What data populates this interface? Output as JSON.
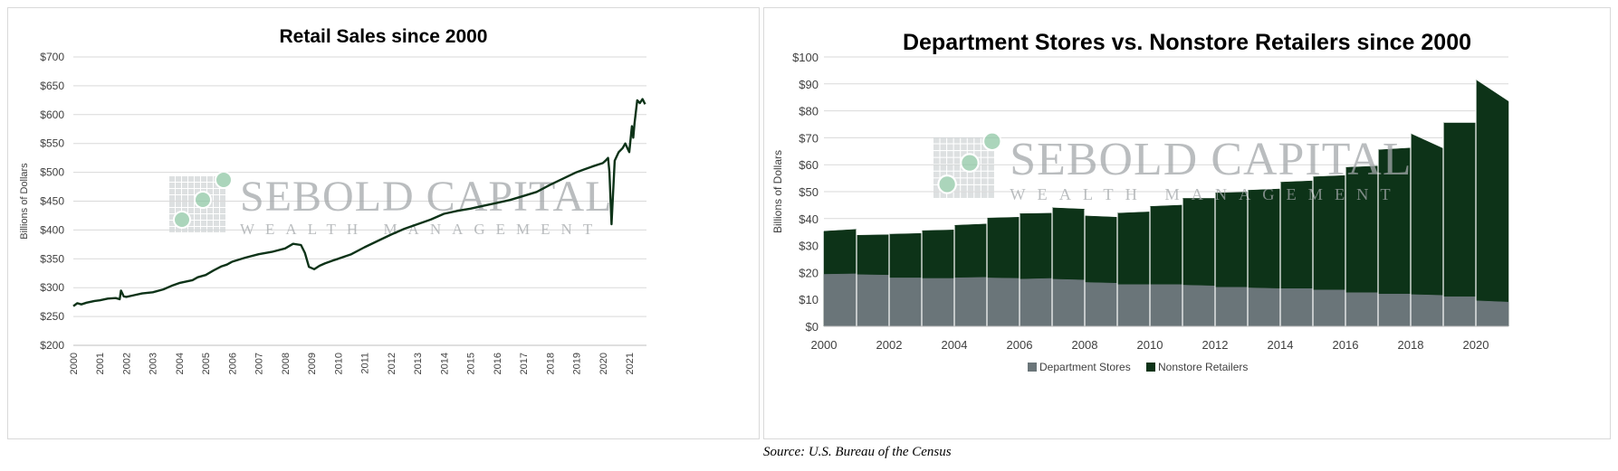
{
  "source_note": "Source: U.S. Bureau of the Census",
  "watermark": {
    "line1": "SEBOLD CAPITAL",
    "line2": "WEALTH MANAGEMENT"
  },
  "chart_data": [
    {
      "type": "line",
      "title": "Retail Sales since 2000",
      "xlabel": "",
      "ylabel": "Billions of Dollars",
      "ylim": [
        200,
        700
      ],
      "yticks": [
        200,
        250,
        300,
        350,
        400,
        450,
        500,
        550,
        600,
        650,
        700
      ],
      "ytick_labels": [
        "$200",
        "$250",
        "$300",
        "$350",
        "$400",
        "$450",
        "$500",
        "$550",
        "$600",
        "$650",
        "$700"
      ],
      "xlim": [
        2000,
        2021.65
      ],
      "xtick_labels": [
        "2000",
        "2001",
        "2002",
        "2003",
        "2004",
        "2005",
        "2006",
        "2007",
        "2008",
        "2009",
        "2010",
        "2011",
        "2012",
        "2013",
        "2014",
        "2015",
        "2016",
        "2017",
        "2018",
        "2019",
        "2020",
        "2021"
      ],
      "grid": true,
      "color": "#0d3318",
      "series": [
        {
          "x": [
            2000.0,
            2000.15,
            2000.3,
            2000.5,
            2000.8,
            2001.0,
            2001.3,
            2001.6,
            2001.75,
            2001.8,
            2001.9,
            2002.0,
            2002.3,
            2002.6,
            2003.0,
            2003.4,
            2003.7,
            2004.0,
            2004.3,
            2004.5,
            2004.7,
            2005.0,
            2005.3,
            2005.6,
            2005.8,
            2006.0,
            2006.5,
            2007.0,
            2007.5,
            2008.0,
            2008.3,
            2008.6,
            2008.75,
            2008.9,
            2009.1,
            2009.3,
            2009.5,
            2009.8,
            2010.0,
            2010.5,
            2011.0,
            2011.5,
            2012.0,
            2012.5,
            2013.0,
            2013.5,
            2014.0,
            2014.5,
            2015.0,
            2015.5,
            2016.0,
            2016.5,
            2017.0,
            2017.5,
            2018.0,
            2018.5,
            2019.0,
            2019.3,
            2019.6,
            2020.0,
            2020.1,
            2020.2,
            2020.25,
            2020.33,
            2020.45,
            2020.6,
            2020.75,
            2020.85,
            2020.95,
            2021.0,
            2021.1,
            2021.15,
            2021.2,
            2021.3,
            2021.4,
            2021.5,
            2021.6
          ],
          "y": [
            268,
            273,
            271,
            274,
            277,
            278,
            281,
            282,
            280,
            295,
            285,
            284,
            287,
            290,
            292,
            297,
            303,
            308,
            311,
            313,
            318,
            322,
            330,
            337,
            340,
            345,
            352,
            358,
            362,
            368,
            376,
            374,
            360,
            336,
            332,
            338,
            342,
            347,
            350,
            358,
            370,
            381,
            392,
            402,
            410,
            418,
            428,
            433,
            437,
            442,
            447,
            452,
            459,
            466,
            478,
            489,
            500,
            505,
            510,
            516,
            520,
            525,
            500,
            410,
            520,
            535,
            542,
            550,
            540,
            535,
            580,
            560,
            585,
            625,
            620,
            627,
            618
          ]
        }
      ]
    },
    {
      "type": "area",
      "title": "Department Stores vs. Nonstore Retailers since 2000",
      "xlabel": "",
      "ylabel": "Billions of Dollars",
      "ylim": [
        0,
        100
      ],
      "yticks": [
        0,
        10,
        20,
        30,
        40,
        50,
        60,
        70,
        80,
        90,
        100
      ],
      "ytick_labels": [
        "$0",
        "$10",
        "$20",
        "$30",
        "$40",
        "$50",
        "$60",
        "$70",
        "$80",
        "$90",
        "$100"
      ],
      "xlim": [
        2000,
        2021
      ],
      "xtick_labels": [
        "2000",
        "2002",
        "2004",
        "2006",
        "2008",
        "2010",
        "2012",
        "2014",
        "2016",
        "2018",
        "2020"
      ],
      "grid": true,
      "legend": "bottom-center",
      "x": [
        2000,
        2001,
        2002,
        2003,
        2004,
        2005,
        2006,
        2007,
        2008,
        2009,
        2010,
        2011,
        2012,
        2013,
        2014,
        2015,
        2016,
        2017,
        2018,
        2019,
        2020
      ],
      "series": [
        {
          "name": "Department Stores",
          "color": "#6a7579",
          "start": [
            19.3,
            19.2,
            18,
            17.8,
            18,
            18,
            17.5,
            17.5,
            16.3,
            15.5,
            15.5,
            15.3,
            14.5,
            14.3,
            14,
            13.5,
            12.5,
            12,
            11.8,
            11,
            9.5
          ],
          "end": [
            19.5,
            19,
            18,
            17.8,
            18.2,
            17.8,
            17.8,
            17.2,
            16,
            15.5,
            15.5,
            15,
            14.5,
            14,
            14,
            13.5,
            12.5,
            12,
            11.5,
            11,
            9
          ]
        },
        {
          "name": "Nonstore Retailers",
          "color": "#0d3318",
          "start": [
            35.3,
            33.8,
            34.2,
            35.5,
            37.5,
            40.2,
            41.8,
            44,
            41,
            42,
            44.5,
            47.5,
            49.5,
            50.5,
            53.5,
            55.5,
            59,
            65.5,
            71.5,
            75.5,
            91.5
          ],
          "end": [
            36,
            34,
            34.5,
            35.8,
            38,
            40.5,
            42,
            43.5,
            40.5,
            42.5,
            45,
            47.5,
            49.8,
            51,
            54,
            56,
            59.5,
            66.2,
            66,
            75.5,
            83.5
          ]
        }
      ]
    }
  ]
}
